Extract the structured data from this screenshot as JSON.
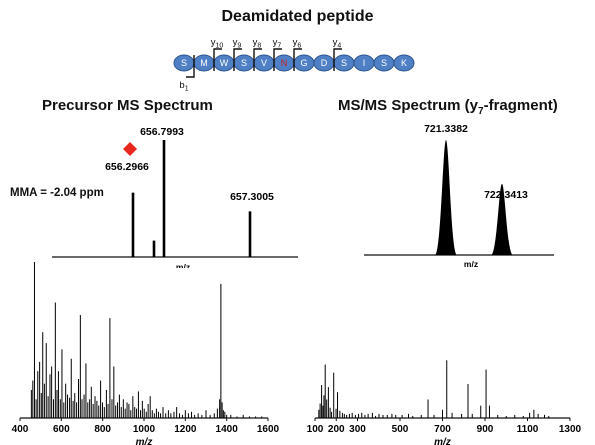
{
  "title": "Deamidated peptide",
  "peptide": {
    "residues": [
      "S",
      "M",
      "W",
      "S",
      "V",
      "N",
      "G",
      "D",
      "S",
      "I",
      "S",
      "K"
    ],
    "modified_index": 5,
    "colors": {
      "residue_fill": "#4f7fc4",
      "residue_stroke": "#2d568f",
      "modified_text": "#cc1f1f",
      "normal_text": "#ffffff"
    },
    "y_ions": [
      {
        "label": "y",
        "sub": "10",
        "after_index": 1
      },
      {
        "label": "y",
        "sub": "9",
        "after_index": 2
      },
      {
        "label": "y",
        "sub": "8",
        "after_index": 3
      },
      {
        "label": "y",
        "sub": "7",
        "after_index": 4
      },
      {
        "label": "y",
        "sub": "6",
        "after_index": 5
      },
      {
        "label": "y",
        "sub": "4",
        "after_index": 7
      }
    ],
    "b_ions": [
      {
        "label": "b",
        "sub": "1",
        "after_index": 0
      }
    ]
  },
  "precursor": {
    "title": "Precursor MS Spectrum",
    "mma": "MMA = -2.04 ppm",
    "x_label": "m/z",
    "marker_color": "#e8281e",
    "peaks": [
      {
        "mz": "656.2966",
        "height": 0.55
      },
      {
        "mz": "656.6",
        "height": 0.14
      },
      {
        "mz": "656.7993",
        "height": 1.0
      },
      {
        "mz": "657.3005",
        "height": 0.39
      }
    ],
    "labels": [
      "656.2966",
      "656.7993",
      "657.3005"
    ]
  },
  "msms_zoom": {
    "title": "MS/MS Spectrum (y",
    "title_sub": "7",
    "title_end": "-fragment)",
    "x_label": "m/z",
    "peaks": [
      {
        "mz": "721.3382",
        "height": 1.0
      },
      {
        "mz": "722.3413",
        "height": 0.62
      }
    ]
  },
  "chart_data": [
    {
      "type": "bar",
      "name": "full precursor MS spectrum",
      "xlabel": "m/z",
      "xlim": [
        400,
        1600
      ],
      "xticks": [
        400,
        600,
        800,
        1000,
        1200,
        1400,
        1600
      ],
      "ylim": [
        0,
        1
      ],
      "x": [
        455,
        462,
        470,
        478,
        486,
        495,
        503,
        510,
        518,
        527,
        536,
        545,
        553,
        562,
        571,
        579,
        586,
        595,
        603,
        612,
        621,
        630,
        640,
        648,
        657,
        665,
        674,
        683,
        692,
        700,
        710,
        719,
        728,
        737,
        745,
        754,
        763,
        772,
        781,
        790,
        799,
        808,
        818,
        826,
        835,
        845,
        854,
        863,
        872,
        881,
        890,
        900,
        909,
        918,
        927,
        936,
        946,
        955,
        964,
        973,
        983,
        992,
        1001,
        1011,
        1020,
        1030,
        1040,
        1050,
        1060,
        1070,
        1080,
        1092,
        1105,
        1118,
        1130,
        1145,
        1158,
        1172,
        1186,
        1200,
        1215,
        1230,
        1245,
        1262,
        1280,
        1300,
        1320,
        1340,
        1355,
        1366,
        1372,
        1378,
        1384,
        1391,
        1400,
        1420,
        1450,
        1480,
        1510,
        1540,
        1570
      ],
      "values": [
        0.18,
        0.24,
        1.0,
        0.12,
        0.3,
        0.36,
        0.16,
        0.55,
        0.22,
        0.48,
        0.14,
        0.28,
        0.33,
        0.12,
        0.74,
        0.18,
        0.3,
        0.12,
        0.44,
        0.1,
        0.22,
        0.15,
        0.13,
        0.38,
        0.11,
        0.16,
        0.1,
        0.25,
        0.66,
        0.12,
        0.15,
        0.35,
        0.1,
        0.12,
        0.2,
        0.09,
        0.14,
        0.11,
        0.08,
        0.24,
        0.1,
        0.07,
        0.18,
        0.09,
        0.64,
        0.12,
        0.33,
        0.08,
        0.1,
        0.15,
        0.07,
        0.12,
        0.06,
        0.1,
        0.09,
        0.05,
        0.14,
        0.07,
        0.06,
        0.17,
        0.05,
        0.11,
        0.06,
        0.04,
        0.09,
        0.14,
        0.05,
        0.03,
        0.06,
        0.04,
        0.03,
        0.07,
        0.03,
        0.05,
        0.03,
        0.04,
        0.07,
        0.03,
        0.02,
        0.05,
        0.03,
        0.04,
        0.02,
        0.03,
        0.02,
        0.05,
        0.02,
        0.03,
        0.06,
        0.12,
        0.86,
        0.1,
        0.05,
        0.04,
        0.02,
        0.02,
        0.01,
        0.02,
        0.01,
        0.01,
        0.01
      ]
    },
    {
      "type": "bar",
      "name": "full MS/MS spectrum",
      "xlabel": "m/z",
      "xlim": [
        100,
        1300
      ],
      "xticks": [
        100,
        200,
        300,
        500,
        700,
        900,
        1100,
        1300
      ],
      "ylim": [
        0,
        1
      ],
      "x": [
        118,
        124,
        131,
        137,
        142,
        148,
        155,
        163,
        171,
        178,
        188,
        199,
        206,
        217,
        229,
        238,
        249,
        262,
        275,
        290,
        305,
        320,
        335,
        350,
        370,
        385,
        401,
        420,
        440,
        462,
        480,
        510,
        540,
        560,
        600,
        632,
        660,
        700,
        720,
        745,
        790,
        820,
        840,
        880,
        905,
        921,
        960,
        1000,
        1040,
        1080,
        1110,
        1130,
        1150,
        1180,
        1200
      ],
      "values": [
        0.08,
        0.14,
        0.32,
        0.12,
        0.22,
        0.52,
        0.18,
        0.3,
        0.1,
        0.06,
        0.44,
        0.09,
        0.25,
        0.07,
        0.05,
        0.04,
        0.03,
        0.04,
        0.05,
        0.03,
        0.04,
        0.05,
        0.03,
        0.04,
        0.05,
        0.02,
        0.04,
        0.03,
        0.03,
        0.04,
        0.03,
        0.03,
        0.04,
        0.02,
        0.03,
        0.18,
        0.03,
        0.08,
        0.56,
        0.05,
        0.04,
        0.33,
        0.04,
        0.12,
        0.47,
        0.12,
        0.03,
        0.02,
        0.03,
        0.02,
        0.05,
        0.08,
        0.04,
        0.03,
        0.02
      ]
    }
  ]
}
